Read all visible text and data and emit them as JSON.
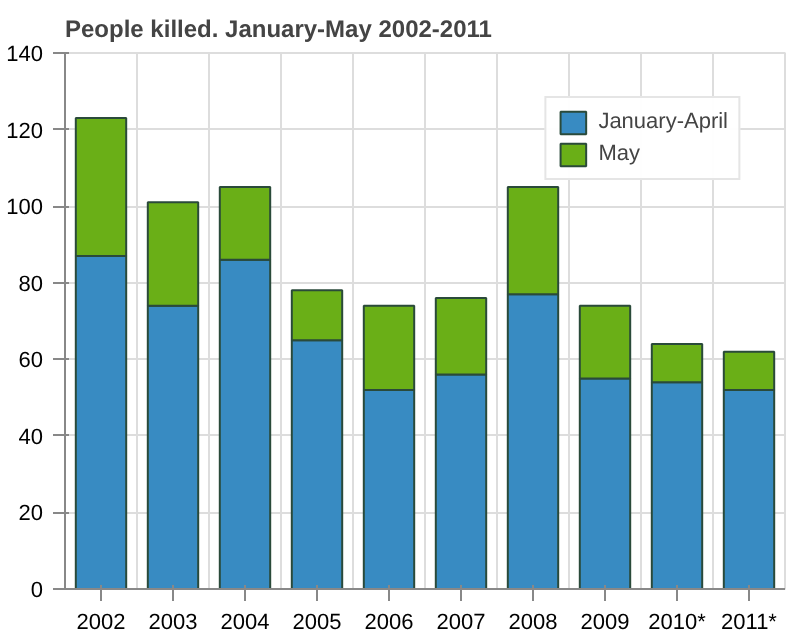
{
  "chart_data": {
    "type": "bar",
    "title": "People killed. January-May 2002-2011",
    "categories": [
      "2002",
      "2003",
      "2004",
      "2005",
      "2006",
      "2007",
      "2008",
      "2009",
      "2010*",
      "2011*"
    ],
    "stacked": true,
    "series": [
      {
        "name": "January-April",
        "color": "#388bc2",
        "values": [
          87,
          74,
          86,
          65,
          52,
          56,
          77,
          55,
          54,
          52
        ]
      },
      {
        "name": "May",
        "color": "#6aaf17",
        "values": [
          36,
          27,
          19,
          13,
          22,
          20,
          28,
          19,
          10,
          10
        ]
      }
    ],
    "ylim": [
      0,
      140
    ],
    "yticks": [
      0,
      20,
      40,
      60,
      80,
      100,
      120,
      140
    ],
    "grid": true,
    "legend": "top right"
  }
}
